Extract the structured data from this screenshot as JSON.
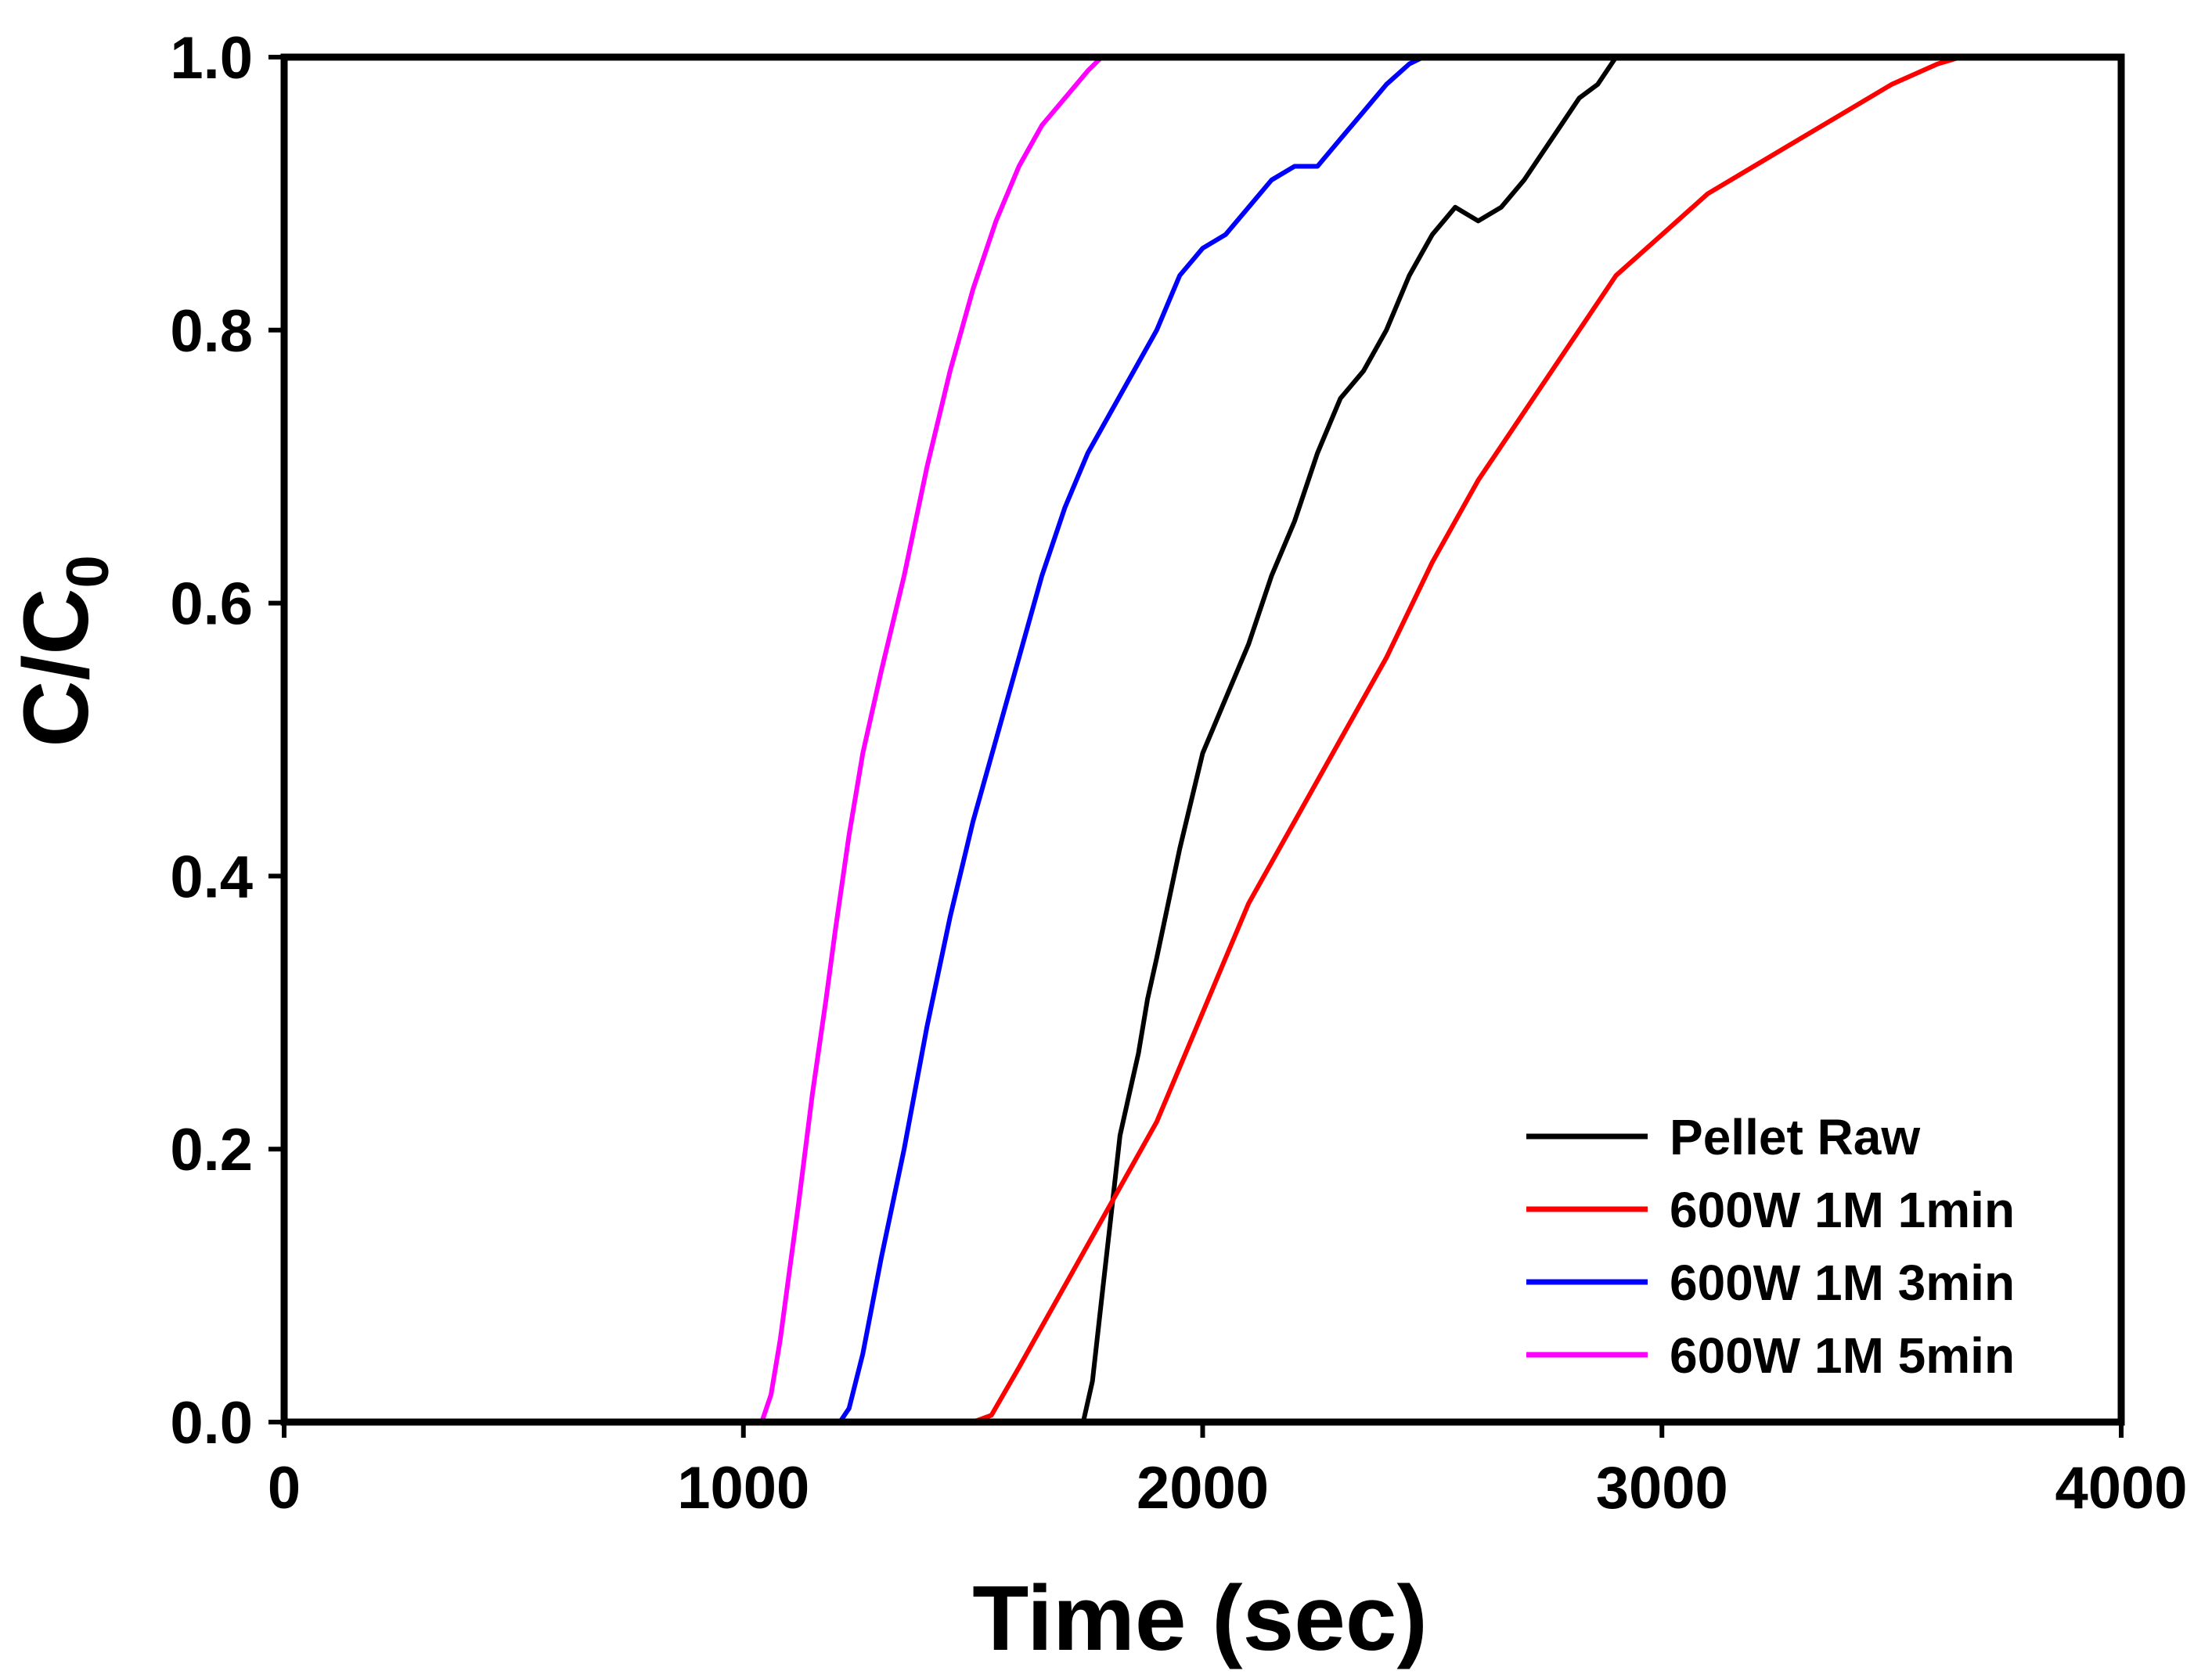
{
  "chart_data": {
    "type": "line",
    "title": "",
    "xlabel": "Time (sec)",
    "ylabel": {
      "main": "C/C",
      "subscript": "0"
    },
    "xlim": [
      0,
      4000
    ],
    "ylim": [
      0,
      1.0
    ],
    "xticks": [
      0,
      1000,
      2000,
      3000,
      4000
    ],
    "xtick_labels": [
      "0",
      "1000",
      "2000",
      "3000",
      "4000"
    ],
    "yticks": [
      0,
      0.2,
      0.4,
      0.6,
      0.8,
      1.0
    ],
    "ytick_labels": [
      "0.0",
      "0.2",
      "0.4",
      "0.6",
      "0.8",
      "1.0"
    ],
    "grid": false,
    "legend_position": "bottom-right",
    "series": [
      {
        "name": "Pellet Raw",
        "color": "#000000",
        "x": [
          0,
          1740,
          1760,
          1780,
          1800,
          1820,
          1840,
          1860,
          1880,
          1900,
          1950,
          2000,
          2050,
          2100,
          2150,
          2200,
          2250,
          2300,
          2350,
          2400,
          2450,
          2500,
          2550,
          2600,
          2650,
          2700,
          2740,
          2780,
          2820,
          2860,
          2900,
          2950,
          3000
        ],
        "y": [
          0,
          0,
          0.03,
          0.09,
          0.15,
          0.21,
          0.24,
          0.27,
          0.31,
          0.34,
          0.42,
          0.49,
          0.53,
          0.57,
          0.62,
          0.66,
          0.71,
          0.75,
          0.77,
          0.8,
          0.84,
          0.87,
          0.89,
          0.88,
          0.89,
          0.91,
          0.93,
          0.95,
          0.97,
          0.98,
          1.0,
          1.0,
          1.0
        ]
      },
      {
        "name": "600W 1M 1min",
        "color": "#ff0000",
        "x": [
          0,
          1500,
          1540,
          1600,
          1650,
          1700,
          1750,
          1800,
          1850,
          1900,
          1950,
          2000,
          2050,
          2100,
          2200,
          2300,
          2400,
          2500,
          2600,
          2700,
          2800,
          2900,
          3000,
          3100,
          3200,
          3300,
          3400,
          3500,
          3600,
          3650
        ],
        "y": [
          0,
          0,
          0.005,
          0.04,
          0.07,
          0.1,
          0.13,
          0.16,
          0.19,
          0.22,
          0.26,
          0.3,
          0.34,
          0.38,
          0.44,
          0.5,
          0.56,
          0.63,
          0.69,
          0.74,
          0.79,
          0.84,
          0.87,
          0.9,
          0.92,
          0.94,
          0.96,
          0.98,
          0.995,
          1.0
        ]
      },
      {
        "name": "600W 1M 3min",
        "color": "#0000ff",
        "x": [
          0,
          1210,
          1230,
          1260,
          1300,
          1350,
          1400,
          1450,
          1500,
          1550,
          1600,
          1650,
          1700,
          1750,
          1800,
          1850,
          1900,
          1950,
          2000,
          2050,
          2100,
          2150,
          2200,
          2250,
          2300,
          2350,
          2400,
          2450,
          2480
        ],
        "y": [
          0,
          0,
          0.01,
          0.05,
          0.12,
          0.2,
          0.29,
          0.37,
          0.44,
          0.5,
          0.56,
          0.62,
          0.67,
          0.71,
          0.74,
          0.77,
          0.8,
          0.84,
          0.86,
          0.87,
          0.89,
          0.91,
          0.92,
          0.92,
          0.94,
          0.96,
          0.98,
          0.995,
          1.0
        ]
      },
      {
        "name": "600W 1M 5min",
        "color": "#ff00ff",
        "x": [
          0,
          1040,
          1060,
          1080,
          1100,
          1120,
          1150,
          1180,
          1200,
          1230,
          1260,
          1300,
          1350,
          1400,
          1450,
          1500,
          1550,
          1600,
          1650,
          1700,
          1750,
          1780
        ],
        "y": [
          0,
          0,
          0.02,
          0.06,
          0.11,
          0.16,
          0.24,
          0.31,
          0.36,
          0.43,
          0.49,
          0.55,
          0.62,
          0.7,
          0.77,
          0.83,
          0.88,
          0.92,
          0.95,
          0.97,
          0.99,
          1.0
        ]
      }
    ]
  }
}
